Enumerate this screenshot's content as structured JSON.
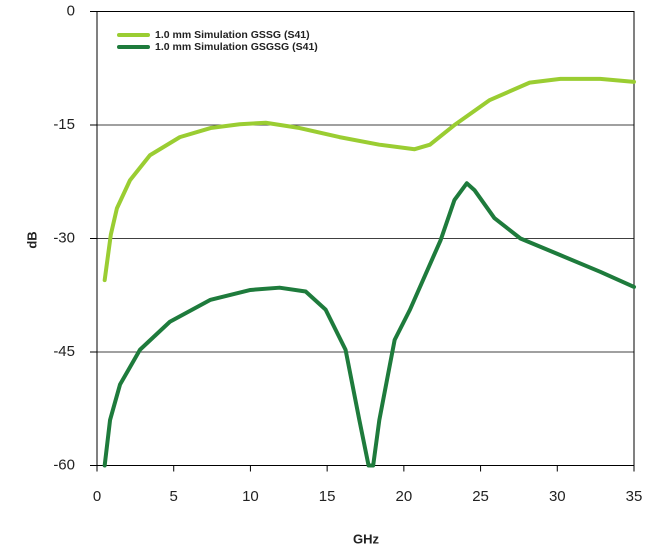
{
  "chart_data": {
    "type": "line",
    "xlabel": "GHz",
    "ylabel": "dB",
    "xlim": [
      0,
      35
    ],
    "xticks": [
      0,
      5,
      10,
      15,
      20,
      25,
      30,
      35
    ],
    "ylim": [
      -60,
      0
    ],
    "yticks": [
      0,
      -15,
      -30,
      -45,
      -60
    ],
    "grid": true,
    "legend": "upper left",
    "series": [
      {
        "name": "1.0 mm Simulation GSSG (S41)",
        "color": "#9acd32",
        "x": [
          0.5,
          0.9,
          1.3,
          2.15,
          3.45,
          5.4,
          7.4,
          9.3,
          11,
          13.2,
          15.8,
          18.4,
          20.7,
          21.7,
          23.3,
          25.6,
          28.2,
          30.2,
          32.8,
          35
        ],
        "values": [
          -35.5,
          -29.5,
          -26,
          -22.3,
          -19,
          -16.6,
          -15.4,
          -14.9,
          -14.7,
          -15.4,
          -16.6,
          -17.6,
          -18.2,
          -17.6,
          -15,
          -11.7,
          -9.4,
          -8.9,
          -8.9,
          -9.3
        ]
      },
      {
        "name": "1.0 mm Simulation GSGSG (S41)",
        "color": "#1e7b3c",
        "x": [
          0.5,
          0.85,
          1.5,
          2.8,
          4.75,
          7.4,
          10,
          11.9,
          13.6,
          14.9,
          16.2,
          17.1,
          17.7,
          18,
          18.4,
          19.4,
          20.4,
          22.4,
          23.3,
          24.1,
          24.6,
          25.9,
          27.6,
          30.2,
          32.8,
          35
        ],
        "values": [
          -60,
          -54,
          -49.3,
          -44.7,
          -41,
          -38.1,
          -36.8,
          -36.5,
          -37,
          -39.4,
          -44.7,
          -54,
          -60,
          -60,
          -54,
          -43.4,
          -39.4,
          -30.2,
          -24.9,
          -22.7,
          -23.6,
          -27.3,
          -30,
          -32.2,
          -34.4,
          -36.4
        ]
      }
    ]
  }
}
